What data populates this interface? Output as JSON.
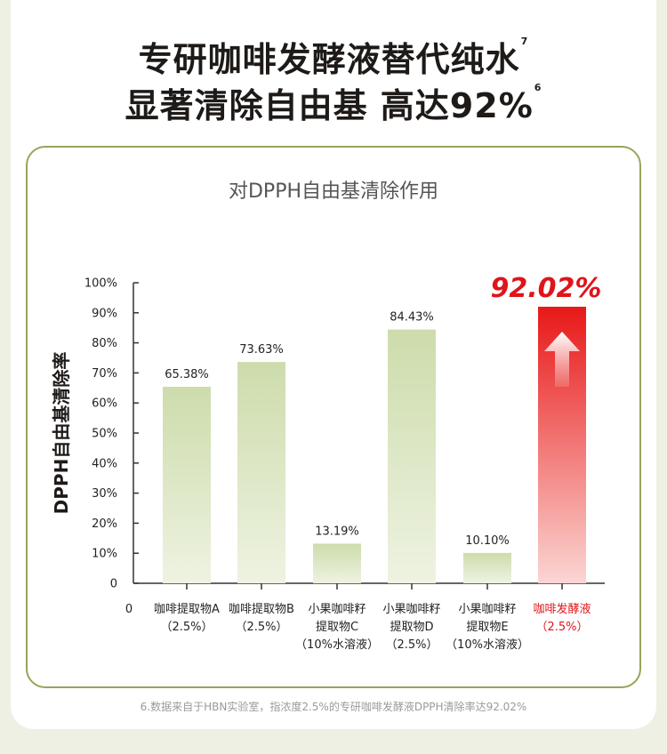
{
  "headline": {
    "line1": "专研咖啡发酵液替代纯水",
    "line1_note": "7",
    "line2": "显著清除自由基 高达92%",
    "line2_note": "6"
  },
  "footnote": "6.数据来自于HBN实验室，指浓度2.5%的专研咖啡发酵液DPPH清除率达92.02%",
  "colors": {
    "bar_green_top": "#cddcab",
    "bar_green_bottom": "#eef3e2",
    "bar_red_top": "#e81818",
    "bar_red_bottom": "#fbd6d3",
    "highlight": "#e0141a",
    "card_border": "#98a458"
  },
  "chart_data": {
    "type": "bar",
    "title": "对DPPH自由基清除作用",
    "ylabel": "DPPH自由基清除率",
    "ylim": [
      0,
      100
    ],
    "y_ticks": [
      "0",
      "10%",
      "20%",
      "30%",
      "40%",
      "50%",
      "60%",
      "70%",
      "80%",
      "90%",
      "100%"
    ],
    "x_origin_label": "0",
    "categories": [
      [
        "咖啡提取物A",
        "（2.5%）"
      ],
      [
        "咖啡提取物B",
        "（2.5%）"
      ],
      [
        "小果咖啡籽",
        "提取物C",
        "（10%水溶液）"
      ],
      [
        "小果咖啡籽",
        "提取物D",
        "（2.5%）"
      ],
      [
        "小果咖啡籽",
        "提取物E",
        "（10%水溶液）"
      ],
      [
        "咖啡发酵液",
        "（2.5%）"
      ]
    ],
    "values": [
      65.38,
      73.63,
      13.19,
      84.43,
      10.1,
      92.02
    ],
    "labels": [
      "65.38%",
      "73.63%",
      "13.19%",
      "84.43%",
      "10.10%",
      "92.02%"
    ],
    "highlight_index": 5,
    "highlight_icon": "up-arrow-icon"
  }
}
